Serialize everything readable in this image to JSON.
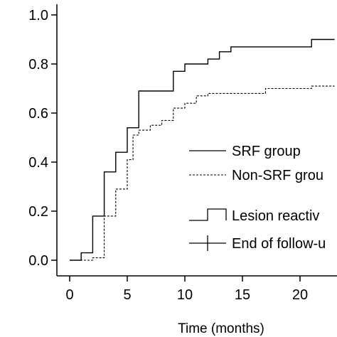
{
  "chart_data": {
    "type": "line",
    "title": "",
    "xlabel": "Time (months)",
    "ylabel": "",
    "xlim": [
      0,
      23
    ],
    "ylim": [
      0,
      1.0
    ],
    "x_ticks": [
      "0",
      "5",
      "10",
      "15",
      "20"
    ],
    "y_ticks": [
      "0.0",
      "0.2",
      "0.4",
      "0.6",
      "0.8",
      "1.0"
    ],
    "grid": false,
    "legend_placement": "right",
    "series": [
      {
        "name": "SRF group",
        "line_style": "solid",
        "color": "#000000",
        "points": [
          [
            0,
            0
          ],
          [
            1,
            0
          ],
          [
            1,
            0.03
          ],
          [
            2,
            0.03
          ],
          [
            2,
            0.18
          ],
          [
            3,
            0.18
          ],
          [
            3,
            0.36
          ],
          [
            4,
            0.36
          ],
          [
            4,
            0.44
          ],
          [
            5,
            0.44
          ],
          [
            5,
            0.54
          ],
          [
            6,
            0.54
          ],
          [
            6,
            0.69
          ],
          [
            9,
            0.69
          ],
          [
            9,
            0.77
          ],
          [
            10,
            0.77
          ],
          [
            10,
            0.8
          ],
          [
            12,
            0.8
          ],
          [
            12,
            0.82
          ],
          [
            13,
            0.82
          ],
          [
            13,
            0.85
          ],
          [
            14,
            0.85
          ],
          [
            14,
            0.87
          ],
          [
            21,
            0.87
          ],
          [
            21,
            0.9
          ],
          [
            23,
            0.9
          ]
        ]
      },
      {
        "name": "Non-SRF grou",
        "line_style": "dashed",
        "color": "#000000",
        "points": [
          [
            0,
            0
          ],
          [
            2,
            0
          ],
          [
            2,
            0.01
          ],
          [
            3,
            0.01
          ],
          [
            3,
            0.18
          ],
          [
            4,
            0.18
          ],
          [
            4,
            0.29
          ],
          [
            5,
            0.29
          ],
          [
            5,
            0.41
          ],
          [
            5.5,
            0.41
          ],
          [
            5.5,
            0.51
          ],
          [
            6,
            0.51
          ],
          [
            6,
            0.53
          ],
          [
            7,
            0.53
          ],
          [
            7,
            0.55
          ],
          [
            8,
            0.55
          ],
          [
            8,
            0.57
          ],
          [
            9,
            0.57
          ],
          [
            9,
            0.62
          ],
          [
            10,
            0.62
          ],
          [
            10,
            0.64
          ],
          [
            11,
            0.64
          ],
          [
            11,
            0.67
          ],
          [
            12,
            0.67
          ],
          [
            12,
            0.68
          ],
          [
            17,
            0.68
          ],
          [
            17,
            0.7
          ],
          [
            21,
            0.7
          ],
          [
            21,
            0.71
          ],
          [
            23,
            0.71
          ]
        ]
      }
    ],
    "legend": {
      "series_labels": [
        "SRF group",
        "Non-SRF grou"
      ],
      "marker_labels": [
        "Lesion reactiv",
        "End of follow-u"
      ]
    }
  }
}
